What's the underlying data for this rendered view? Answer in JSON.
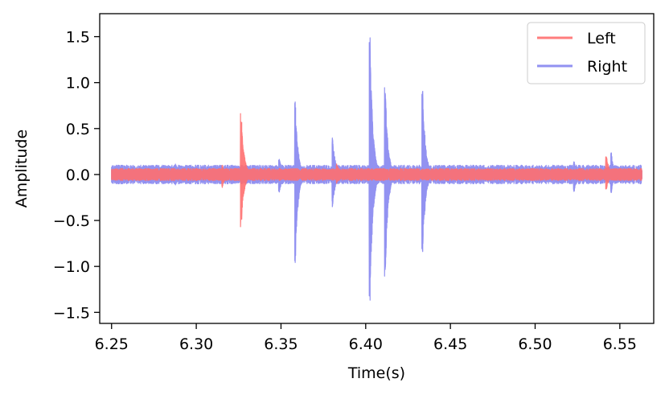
{
  "chart_data": {
    "type": "line",
    "xlabel": "Time(s)",
    "ylabel": "Amplitude",
    "xlim": [
      6.243,
      6.57
    ],
    "ylim": [
      -1.62,
      1.75
    ],
    "xticks": [
      "6.25",
      "6.30",
      "6.35",
      "6.40",
      "6.45",
      "6.50",
      "6.55"
    ],
    "yticks": [
      "1.5",
      "1.0",
      "0.5",
      "0.0",
      "−0.5",
      "−1.0",
      "−1.5"
    ],
    "xtick_values": [
      6.25,
      6.3,
      6.35,
      6.4,
      6.45,
      6.5,
      6.55
    ],
    "ytick_values": [
      1.5,
      1.0,
      0.5,
      0.0,
      -0.5,
      -1.0,
      -1.5
    ],
    "grid": false,
    "legend_position": "top-right",
    "x_range": [
      6.25,
      6.563
    ],
    "series": [
      {
        "name": "Left",
        "color": "#ff6f6f",
        "opacity": 0.9,
        "baseline_amplitude": 0.045,
        "events": [
          {
            "time": 6.3265,
            "max": 0.7,
            "min": -0.6
          },
          {
            "time": 6.3155,
            "max": 0.1,
            "min": -0.14
          },
          {
            "time": 6.383,
            "max": 0.12,
            "min": -0.1
          },
          {
            "time": 6.542,
            "max": 0.22,
            "min": -0.18
          }
        ]
      },
      {
        "name": "Right",
        "color": "#7777ee",
        "opacity": 0.8,
        "baseline_amplitude": 0.07,
        "events": [
          {
            "time": 6.3585,
            "max": 0.8,
            "min": -0.97
          },
          {
            "time": 6.3805,
            "max": 0.42,
            "min": -0.37
          },
          {
            "time": 6.4025,
            "max": 1.61,
            "min": -1.48
          },
          {
            "time": 6.4115,
            "max": 1.0,
            "min": -1.17
          },
          {
            "time": 6.4335,
            "max": 1.08,
            "min": -1.0
          },
          {
            "time": 6.349,
            "max": 0.19,
            "min": -0.22
          },
          {
            "time": 6.523,
            "max": 0.15,
            "min": -0.2
          },
          {
            "time": 6.545,
            "max": 0.24,
            "min": -0.2
          },
          {
            "time": 6.288,
            "max": 0.12,
            "min": -0.12
          }
        ]
      }
    ]
  }
}
